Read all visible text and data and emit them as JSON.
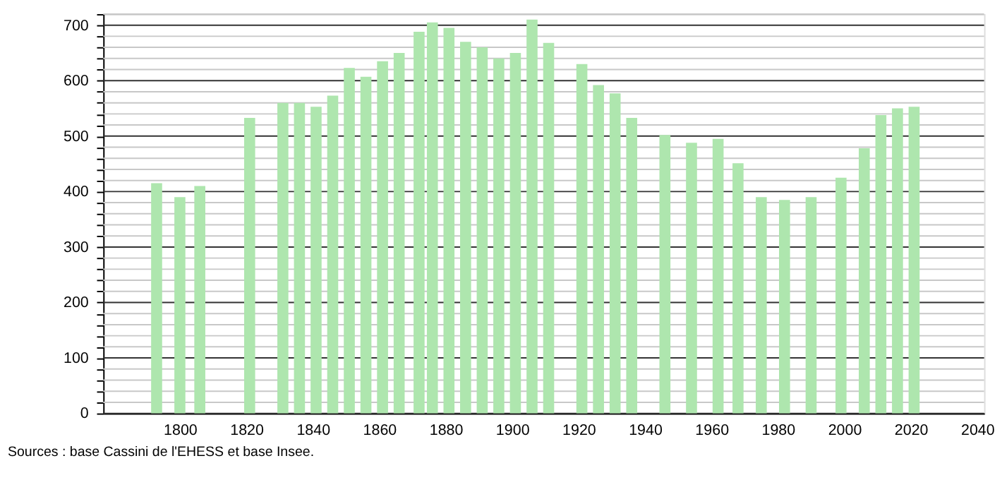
{
  "chart_data": {
    "type": "bar",
    "x": [
      1793,
      1800,
      1806,
      1821,
      1831,
      1836,
      1841,
      1846,
      1851,
      1856,
      1861,
      1866,
      1872,
      1876,
      1881,
      1886,
      1891,
      1896,
      1901,
      1906,
      1911,
      1921,
      1926,
      1931,
      1936,
      1946,
      1954,
      1962,
      1968,
      1975,
      1982,
      1990,
      1999,
      2006,
      2011,
      2016,
      2021
    ],
    "values": [
      415,
      390,
      410,
      533,
      560,
      560,
      553,
      573,
      623,
      607,
      635,
      650,
      688,
      705,
      695,
      670,
      660,
      640,
      650,
      710,
      668,
      630,
      592,
      577,
      533,
      502,
      488,
      495,
      451,
      390,
      385,
      390,
      425,
      478,
      538,
      550,
      553
    ],
    "color": "#aee6ae",
    "xlim": [
      1779,
      2040
    ],
    "xticks": [
      1800,
      1820,
      1840,
      1860,
      1880,
      1900,
      1920,
      1940,
      1960,
      1980,
      2000,
      2020,
      2040
    ],
    "ylim": [
      0,
      720
    ],
    "yticks": [
      0,
      {
        "value": 20,
        "label": null
      },
      {
        "value": 40,
        "label": null
      },
      {
        "value": 60,
        "label": null
      },
      {
        "value": 80,
        "label": null
      },
      100,
      {
        "value": 120,
        "label": null
      },
      {
        "value": 140,
        "label": null
      },
      {
        "value": 160,
        "label": null
      },
      {
        "value": 180,
        "label": null
      },
      200,
      {
        "value": 220,
        "label": null
      },
      {
        "value": 240,
        "label": null
      },
      {
        "value": 260,
        "label": null
      },
      {
        "value": 280,
        "label": null
      },
      300,
      {
        "value": 320,
        "label": null
      },
      {
        "value": 340,
        "label": null
      },
      {
        "value": 360,
        "label": null
      },
      {
        "value": 380,
        "label": null
      },
      400,
      {
        "value": 420,
        "label": null
      },
      {
        "value": 440,
        "label": null
      },
      {
        "value": 460,
        "label": null
      },
      {
        "value": 480,
        "label": null
      },
      500,
      {
        "value": 520,
        "label": null
      },
      {
        "value": 540,
        "label": null
      },
      {
        "value": 560,
        "label": null
      },
      {
        "value": 580,
        "label": null
      },
      600,
      {
        "value": 620,
        "label": null
      },
      {
        "value": 640,
        "label": null
      },
      {
        "value": 660,
        "label": null
      },
      {
        "value": 680,
        "label": null
      },
      700,
      {
        "value": 720,
        "label": null
      }
    ],
    "grid": "y",
    "annotations": [
      "Sources : base Cassini de l'EHESS et base Insee."
    ]
  }
}
